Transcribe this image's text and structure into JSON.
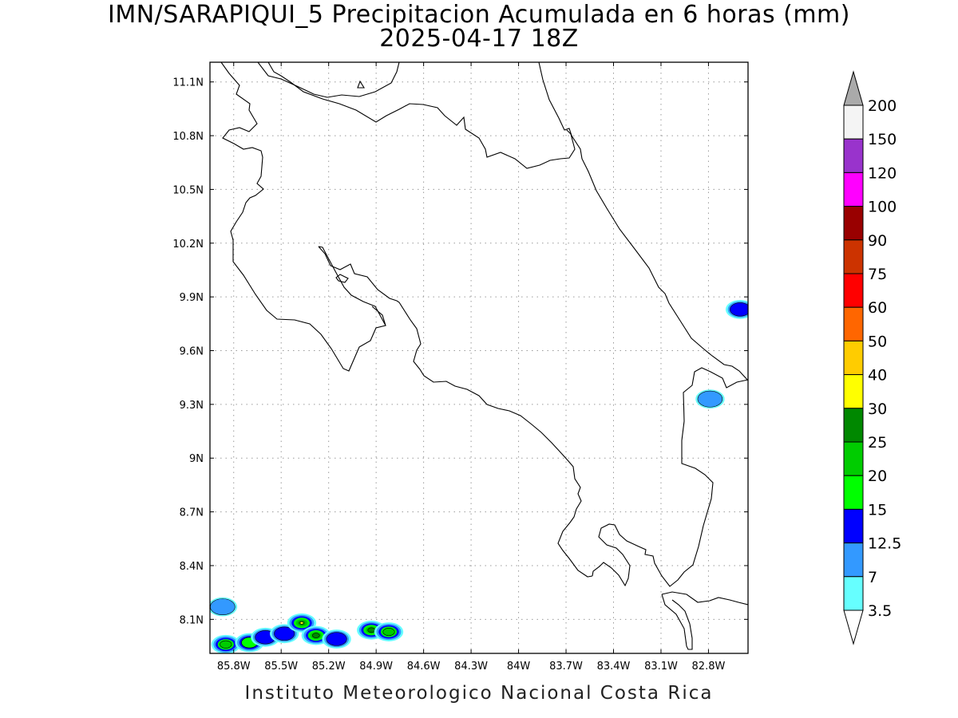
{
  "title": "IMN/SARAPIQUI_5 Precipitacion Acumulada en 6 horas (mm)",
  "subtitle": "2025-04-17 18Z",
  "footer": "Instituto Meteorologico Nacional Costa Rica",
  "map": {
    "lon_ticks": [
      "85.8W",
      "85.5W",
      "85.2W",
      "84.9W",
      "84.6W",
      "84.3W",
      "84W",
      "83.7W",
      "83.4W",
      "83.1W",
      "82.8W"
    ],
    "lat_ticks": [
      "11.1N",
      "10.8N",
      "10.5N",
      "10.2N",
      "9.9N",
      "9.6N",
      "9.3N",
      "9N",
      "8.7N",
      "8.4N",
      "8.1N"
    ],
    "lon_range": [
      -85.95,
      -82.55
    ],
    "lat_range": [
      7.91,
      11.21
    ]
  },
  "colorbar": {
    "levels": [
      "3.5",
      "7",
      "12.5",
      "15",
      "20",
      "25",
      "30",
      "40",
      "50",
      "60",
      "75",
      "90",
      "100",
      "120",
      "150",
      "200"
    ],
    "colors": [
      "#66ffff",
      "#3399ff",
      "#0000ff",
      "#00ff00",
      "#00cc00",
      "#008800",
      "#ffff00",
      "#ffcc00",
      "#ff6600",
      "#ff0000",
      "#cc3300",
      "#990000",
      "#ff00ff",
      "#9933cc",
      "#f4f4f4",
      "#aaaaaa",
      "#ffffff"
    ]
  },
  "precip_blobs": [
    {
      "lon": -85.87,
      "lat": 8.17,
      "level": 1
    },
    {
      "lon": -85.85,
      "lat": 7.96,
      "level": 4
    },
    {
      "lon": -85.7,
      "lat": 7.97,
      "level": 3
    },
    {
      "lon": -85.6,
      "lat": 8.0,
      "level": 2
    },
    {
      "lon": -85.48,
      "lat": 8.02,
      "level": 2
    },
    {
      "lon": -85.37,
      "lat": 8.08,
      "level": 6
    },
    {
      "lon": -85.28,
      "lat": 8.01,
      "level": 5
    },
    {
      "lon": -85.15,
      "lat": 7.99,
      "level": 2
    },
    {
      "lon": -84.93,
      "lat": 8.04,
      "level": 5
    },
    {
      "lon": -84.82,
      "lat": 8.03,
      "level": 4
    },
    {
      "lon": -82.6,
      "lat": 9.83,
      "level": 2
    },
    {
      "lon": -82.79,
      "lat": 9.33,
      "level": 1
    }
  ]
}
